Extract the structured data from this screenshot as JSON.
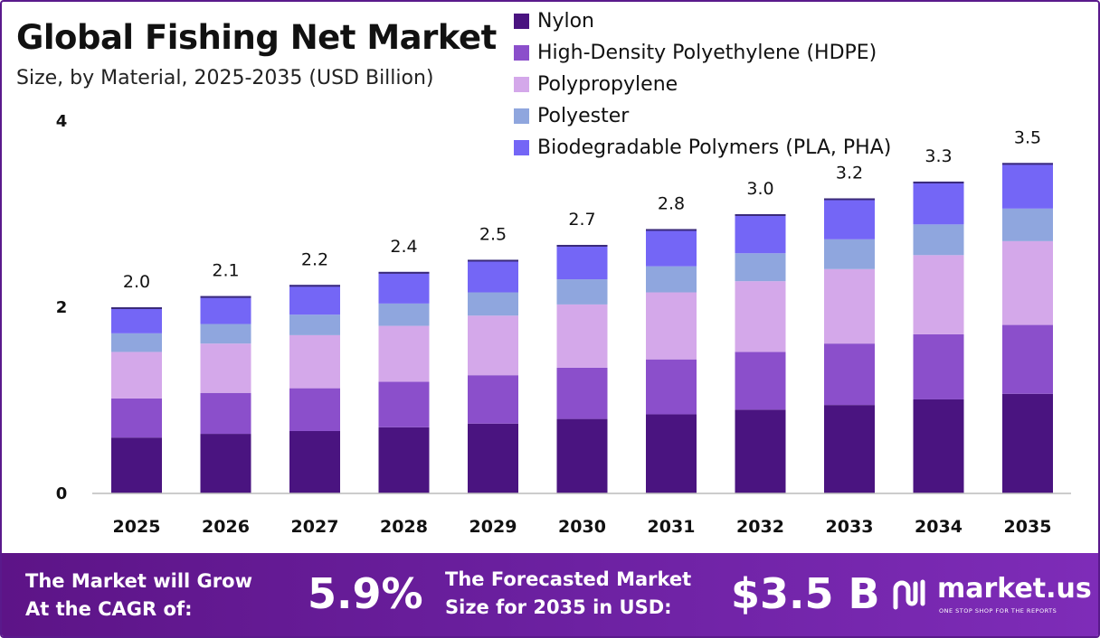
{
  "header": {
    "title": "Global Fishing Net Market",
    "subtitle": "Size, by Material, 2025-2035 (USD Billion)"
  },
  "chart_data": {
    "type": "bar",
    "stacked": true,
    "categories": [
      "2025",
      "2026",
      "2027",
      "2028",
      "2029",
      "2030",
      "2031",
      "2032",
      "2033",
      "2034",
      "2035"
    ],
    "series": [
      {
        "name": "Nylon",
        "color": "#4a1480",
        "values": [
          0.6,
          0.64,
          0.67,
          0.71,
          0.75,
          0.8,
          0.85,
          0.9,
          0.95,
          1.01,
          1.07
        ]
      },
      {
        "name": "High-Density Polyethylene (HDPE)",
        "color": "#8b4fcb",
        "values": [
          0.42,
          0.44,
          0.46,
          0.49,
          0.52,
          0.55,
          0.59,
          0.62,
          0.66,
          0.7,
          0.74
        ]
      },
      {
        "name": "Polypropylene",
        "color": "#d4a8ea",
        "values": [
          0.5,
          0.53,
          0.57,
          0.6,
          0.64,
          0.68,
          0.72,
          0.76,
          0.8,
          0.85,
          0.9
        ]
      },
      {
        "name": "Polyester",
        "color": "#8fa6de",
        "values": [
          0.2,
          0.21,
          0.22,
          0.24,
          0.25,
          0.27,
          0.28,
          0.3,
          0.32,
          0.33,
          0.35
        ]
      },
      {
        "name": "Biodegradable Polymers (PLA, PHA)",
        "color": "#7466f6",
        "values": [
          0.28,
          0.3,
          0.32,
          0.34,
          0.35,
          0.37,
          0.4,
          0.42,
          0.44,
          0.46,
          0.49
        ]
      }
    ],
    "totals": [
      2.0,
      2.1,
      2.2,
      2.4,
      2.5,
      2.7,
      2.8,
      3.0,
      3.2,
      3.3,
      3.5
    ],
    "total_labels": [
      "2.0",
      "2.1",
      "2.2",
      "2.4",
      "2.5",
      "2.7",
      "2.8",
      "3.0",
      "3.2",
      "3.3",
      "3.5"
    ],
    "ylim": [
      0,
      4
    ],
    "yticks": [
      0,
      2,
      4
    ],
    "ytick_labels": [
      "0",
      "2",
      "4"
    ],
    "grid": false,
    "legend_position": "top-right"
  },
  "footer": {
    "cagr_label_line1": "The Market will Grow",
    "cagr_label_line2": "At the CAGR of:",
    "cagr_value": "5.9%",
    "size_label_line1": "The Forecasted Market",
    "size_label_line2": "Size for 2035 in USD:",
    "size_value": "$3.5 B",
    "brand_name": "market.us",
    "brand_tagline": "ONE STOP SHOP FOR THE REPORTS"
  }
}
